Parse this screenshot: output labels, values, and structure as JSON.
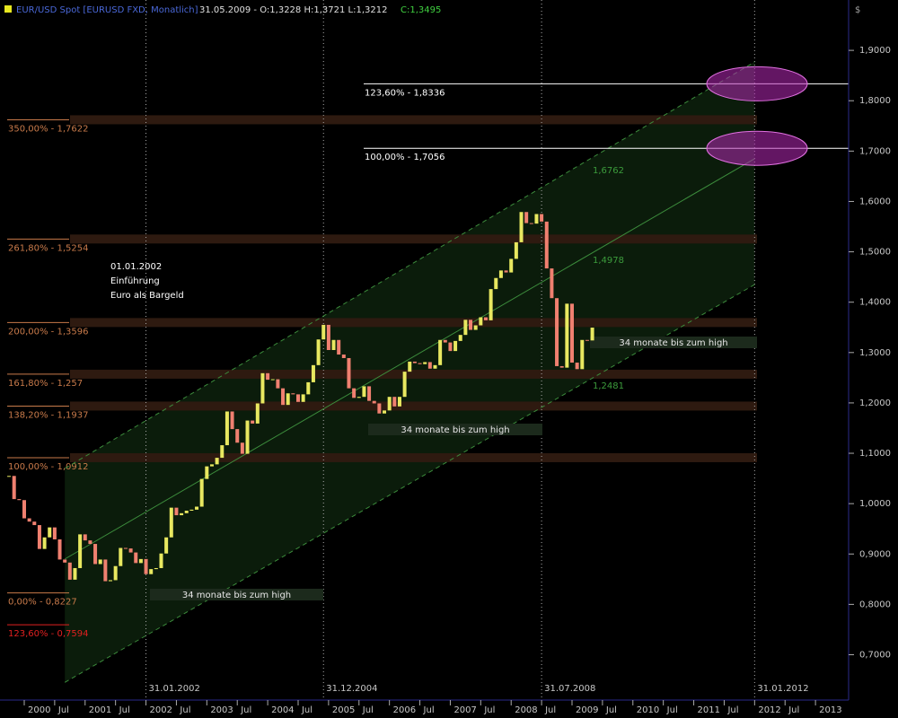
{
  "chart_data": {
    "type": "candlestick",
    "title": "EUR/USD Spot [EURUSD FXD, Monatlich]",
    "subtitle": "31.05.2009 - O:1,3228 H:1,3721 L:1,3212",
    "close_label": "C:1,3495",
    "currency": "$",
    "up_color": "#e8e860",
    "down_color": "#f08070",
    "x": [
      "1999-10",
      "1999-11",
      "1999-12",
      "2000-01",
      "2000-02",
      "2000-03",
      "2000-04",
      "2000-05",
      "2000-06",
      "2000-07",
      "2000-08",
      "2000-09",
      "2000-10",
      "2000-11",
      "2000-12",
      "2001-01",
      "2001-02",
      "2001-03",
      "2001-04",
      "2001-05",
      "2001-06",
      "2001-07",
      "2001-08",
      "2001-09",
      "2001-10",
      "2001-11",
      "2001-12",
      "2002-01",
      "2002-02",
      "2002-03",
      "2002-04",
      "2002-05",
      "2002-06",
      "2002-07",
      "2002-08",
      "2002-09",
      "2002-10",
      "2002-11",
      "2002-12",
      "2003-01",
      "2003-02",
      "2003-03",
      "2003-04",
      "2003-05",
      "2003-06",
      "2003-07",
      "2003-08",
      "2003-09",
      "2003-10",
      "2003-11",
      "2003-12",
      "2004-01",
      "2004-02",
      "2004-03",
      "2004-04",
      "2004-05",
      "2004-06",
      "2004-07",
      "2004-08",
      "2004-09",
      "2004-10",
      "2004-11",
      "2004-12",
      "2005-01",
      "2005-02",
      "2005-03",
      "2005-04",
      "2005-05",
      "2005-06",
      "2005-07",
      "2005-08",
      "2005-09",
      "2005-10",
      "2005-11",
      "2005-12",
      "2006-01",
      "2006-02",
      "2006-03",
      "2006-04",
      "2006-05",
      "2006-06",
      "2006-07",
      "2006-08",
      "2006-09",
      "2006-10",
      "2006-11",
      "2006-12",
      "2007-01",
      "2007-02",
      "2007-03",
      "2007-04",
      "2007-05",
      "2007-06",
      "2007-07",
      "2007-08",
      "2007-09",
      "2007-10",
      "2007-11",
      "2007-12",
      "2008-01",
      "2008-02",
      "2008-03",
      "2008-04",
      "2008-05",
      "2008-06",
      "2008-07",
      "2008-08",
      "2008-09",
      "2008-10",
      "2008-11",
      "2008-12",
      "2009-01",
      "2009-02",
      "2009-03",
      "2009-04",
      "2009-05"
    ],
    "series": [
      {
        "name": "EUR/USD",
        "values": [
          1.055,
          1.009,
          1.007,
          0.9708,
          0.9643,
          0.9574,
          0.91,
          0.933,
          0.9528,
          0.929,
          0.889,
          0.883,
          0.849,
          0.872,
          0.939,
          0.927,
          0.92,
          0.88,
          0.889,
          0.846,
          0.848,
          0.876,
          0.912,
          0.911,
          0.903,
          0.882,
          0.89,
          0.86,
          0.87,
          0.872,
          0.901,
          0.933,
          0.992,
          0.977,
          0.981,
          0.986,
          0.988,
          0.994,
          1.049,
          1.074,
          1.078,
          1.091,
          1.116,
          1.183,
          1.148,
          1.121,
          1.099,
          1.165,
          1.159,
          1.199,
          1.259,
          1.246,
          1.247,
          1.229,
          1.196,
          1.219,
          1.217,
          1.202,
          1.217,
          1.241,
          1.275,
          1.326,
          1.355,
          1.305,
          1.325,
          1.296,
          1.289,
          1.229,
          1.21,
          1.212,
          1.233,
          1.204,
          1.199,
          1.179,
          1.185,
          1.212,
          1.193,
          1.212,
          1.262,
          1.282,
          1.279,
          1.277,
          1.281,
          1.268,
          1.275,
          1.325,
          1.32,
          1.303,
          1.323,
          1.335,
          1.365,
          1.345,
          1.354,
          1.37,
          1.364,
          1.426,
          1.448,
          1.463,
          1.459,
          1.486,
          1.519,
          1.579,
          1.557,
          1.556,
          1.575,
          1.56,
          1.467,
          1.408,
          1.273,
          1.27,
          1.397,
          1.28,
          1.267,
          1.325,
          1.324,
          1.3495
        ]
      }
    ],
    "xlim": [
      "1999-08",
      "2013-07"
    ],
    "xticks": [
      {
        "value": "2000-01",
        "label": "2000"
      },
      {
        "value": "2000-07",
        "label": "Jul"
      },
      {
        "value": "2001-01",
        "label": "2001"
      },
      {
        "value": "2001-07",
        "label": "Jul"
      },
      {
        "value": "2002-01",
        "label": "2002"
      },
      {
        "value": "2002-07",
        "label": "Jul"
      },
      {
        "value": "2003-01",
        "label": "2003"
      },
      {
        "value": "2003-07",
        "label": "Jul"
      },
      {
        "value": "2004-01",
        "label": "2004"
      },
      {
        "value": "2004-07",
        "label": "Jul"
      },
      {
        "value": "2005-01",
        "label": "2005"
      },
      {
        "value": "2005-07",
        "label": "Jul"
      },
      {
        "value": "2006-01",
        "label": "2006"
      },
      {
        "value": "2006-07",
        "label": "Jul"
      },
      {
        "value": "2007-01",
        "label": "2007"
      },
      {
        "value": "2007-07",
        "label": "Jul"
      },
      {
        "value": "2008-01",
        "label": "2008"
      },
      {
        "value": "2008-07",
        "label": "Jul"
      },
      {
        "value": "2009-01",
        "label": "2009"
      },
      {
        "value": "2009-07",
        "label": "Jul"
      },
      {
        "value": "2010-01",
        "label": "2010"
      },
      {
        "value": "2010-07",
        "label": "Jul"
      },
      {
        "value": "2011-01",
        "label": "2011"
      },
      {
        "value": "2011-07",
        "label": "Jul"
      },
      {
        "value": "2012-01",
        "label": "2012"
      },
      {
        "value": "2012-07",
        "label": "Jul"
      },
      {
        "value": "2013-01",
        "label": "2013"
      }
    ],
    "ylim": [
      0.61,
      2.0
    ],
    "yticks": [
      {
        "value": 0.7,
        "label": "0,7000"
      },
      {
        "value": 0.8,
        "label": "0,8000"
      },
      {
        "value": 0.9,
        "label": "0,9000"
      },
      {
        "value": 1.0,
        "label": "1,0000"
      },
      {
        "value": 1.1,
        "label": "1,1000"
      },
      {
        "value": 1.2,
        "label": "1,2000"
      },
      {
        "value": 1.3,
        "label": "1,3000"
      },
      {
        "value": 1.4,
        "label": "1,4000"
      },
      {
        "value": 1.5,
        "label": "1,5000"
      },
      {
        "value": 1.6,
        "label": "1,6000"
      },
      {
        "value": 1.7,
        "label": "1,7000"
      },
      {
        "value": 1.8,
        "label": "1,8000"
      },
      {
        "value": 1.9,
        "label": "1,9000"
      }
    ],
    "date_lines": [
      {
        "x": "2002-01",
        "label": "31.01.2002"
      },
      {
        "x": "2004-12",
        "label": "31.12.2004"
      },
      {
        "x": "2008-07",
        "label": "31.07.2008"
      },
      {
        "x": "2012-01",
        "label": "31.01.2012"
      }
    ],
    "levels": [
      {
        "label": "350,00% - 1,7622",
        "value": 1.7622,
        "color": "#c87a4a",
        "band": true
      },
      {
        "label": "261,80% - 1,5254",
        "value": 1.5254,
        "color": "#c87a4a",
        "band": true
      },
      {
        "label": "200,00% - 1,3596",
        "value": 1.3596,
        "color": "#c87a4a",
        "band": true
      },
      {
        "label": "161,80% - 1,257",
        "value": 1.257,
        "color": "#c87a4a",
        "band": true
      },
      {
        "label": "138,20% - 1,1937",
        "value": 1.1937,
        "color": "#c87a4a",
        "band": true
      },
      {
        "label": "100,00% - 1,0912",
        "value": 1.0912,
        "color": "#c87a4a",
        "band": true
      },
      {
        "label": "0,00% - 0,8227",
        "value": 0.8227,
        "color": "#c87a4a",
        "band": false
      },
      {
        "label": "123,60% - 0,7594",
        "value": 0.7594,
        "color": "#e02020",
        "band": false
      }
    ],
    "targets": [
      {
        "label": "123,60% - 1,8336",
        "value": 1.8336
      },
      {
        "label": "100,00% - 1,7056",
        "value": 1.7056
      }
    ],
    "channel": [
      {
        "label": "1,6762",
        "x": [
          "2000-09",
          "2012-01"
        ],
        "y": [
          1.07,
          1.877
        ],
        "style": "dashed"
      },
      {
        "label": "1,4978",
        "x": [
          "2000-09",
          "2012-01"
        ],
        "y": [
          0.89,
          1.685
        ],
        "style": "solid"
      },
      {
        "label": "1,2481",
        "x": [
          "2000-09",
          "2012-01"
        ],
        "y": [
          0.645,
          1.435
        ],
        "style": "dashed"
      }
    ],
    "annotations": [
      "34 monate bis zum high",
      "34 monate bis zum high",
      "34 monate bis zum high"
    ],
    "note": [
      "01.01.2002",
      "Einführung",
      "Euro als Bargeld"
    ]
  }
}
